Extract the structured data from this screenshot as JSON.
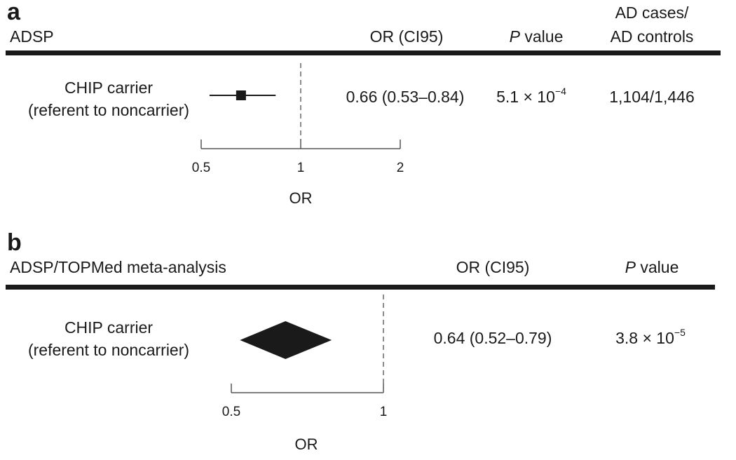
{
  "chart_data": [
    {
      "type": "forest",
      "panel_label": "a",
      "title": "ADSP",
      "columns": {
        "or_ci": "OR (CI95)",
        "p": "value",
        "p_italic_prefix": "P",
        "cases_controls_line1": "AD cases/",
        "cases_controls_line2": "AD controls"
      },
      "rows": [
        {
          "label_line1": "CHIP carrier",
          "label_line2": "(referent to noncarrier)",
          "or": 0.66,
          "ci_low": 0.53,
          "ci_high": 0.84,
          "or_text": "0.66 (0.53–0.84)",
          "p_base": "5.1 × 10",
          "p_exp": "−4",
          "cases_controls": "1,104/1,446",
          "marker": "square"
        }
      ],
      "xlabel": "OR",
      "x_scale": "log",
      "xlim": [
        0.5,
        2
      ],
      "xticks": [
        0.5,
        1,
        2
      ],
      "xtick_labels": [
        "0.5",
        "1",
        "2"
      ],
      "reference_line": 1
    },
    {
      "type": "forest",
      "panel_label": "b",
      "title": "ADSP/TOPMed meta-analysis",
      "columns": {
        "or_ci": "OR (CI95)",
        "p": "value",
        "p_italic_prefix": "P"
      },
      "rows": [
        {
          "label_line1": "CHIP carrier",
          "label_line2": "(referent to noncarrier)",
          "or": 0.64,
          "ci_low": 0.52,
          "ci_high": 0.79,
          "or_text": "0.64 (0.52–0.79)",
          "p_base": "3.8 × 10",
          "p_exp": "−5",
          "marker": "diamond"
        }
      ],
      "xlabel": "OR",
      "x_scale": "log",
      "xlim": [
        0.5,
        1
      ],
      "xticks": [
        0.5,
        1
      ],
      "xtick_labels": [
        "0.5",
        "1"
      ],
      "reference_line": 1
    }
  ],
  "colors": {
    "ink": "#1a1a1a",
    "rule": "#1a1a1a",
    "axis": "#555555",
    "dash": "#666666"
  }
}
